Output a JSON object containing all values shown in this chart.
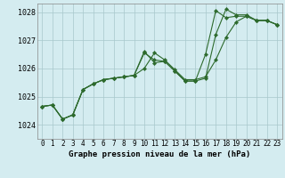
{
  "xlabel": "Graphe pression niveau de la mer (hPa)",
  "ylim": [
    1023.5,
    1028.3
  ],
  "xlim": [
    -0.5,
    23.5
  ],
  "yticks": [
    1024,
    1025,
    1026,
    1027,
    1028
  ],
  "xticks": [
    0,
    1,
    2,
    3,
    4,
    5,
    6,
    7,
    8,
    9,
    10,
    11,
    12,
    13,
    14,
    15,
    16,
    17,
    18,
    19,
    20,
    21,
    22,
    23
  ],
  "bg_color": "#d4ecf0",
  "line_color": "#2d6a2d",
  "grid_color": "#a8c8cc",
  "series1": [
    1024.65,
    1024.7,
    1024.2,
    1024.35,
    1025.25,
    1025.45,
    1025.6,
    1025.65,
    1025.7,
    1025.75,
    1026.0,
    1026.55,
    1026.3,
    1025.95,
    1025.6,
    1025.6,
    1025.7,
    1026.3,
    1027.1,
    1027.65,
    1027.85,
    1027.7,
    1027.7,
    1027.55
  ],
  "series2": [
    1024.65,
    1024.7,
    1024.2,
    1024.35,
    1025.25,
    1025.45,
    1025.6,
    1025.65,
    1025.7,
    1025.75,
    1026.6,
    1026.2,
    1026.25,
    1025.9,
    1025.55,
    1025.55,
    1026.5,
    1028.05,
    1027.8,
    1027.85,
    1027.85,
    1027.7,
    1027.7,
    1027.55
  ],
  "series3": [
    1024.65,
    1024.7,
    1024.2,
    1024.35,
    1025.25,
    1025.45,
    1025.6,
    1025.65,
    1025.7,
    1025.75,
    1026.55,
    1026.3,
    1026.25,
    1025.9,
    1025.55,
    1025.55,
    1025.65,
    1027.2,
    1028.1,
    1027.9,
    1027.9,
    1027.7,
    1027.7,
    1027.55
  ],
  "tick_fontsize": 5.5,
  "xlabel_fontsize": 6.5,
  "ylabel_fontsize": 6.0,
  "linewidth": 0.8,
  "markersize": 2.2
}
